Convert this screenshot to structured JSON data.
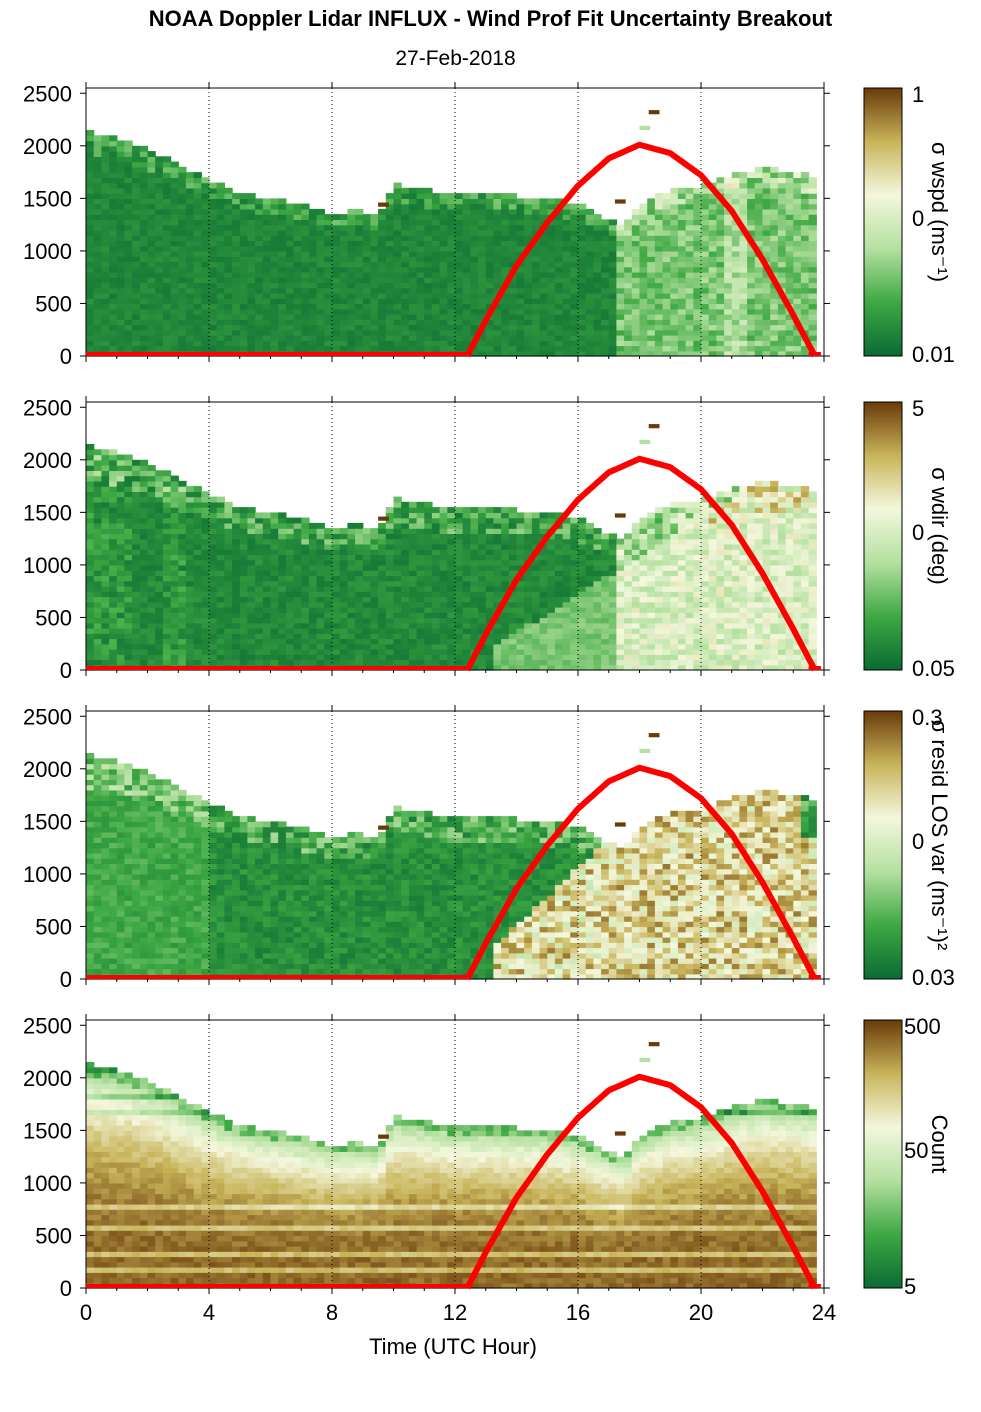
{
  "title": "NOAA Doppler Lidar INFLUX - Wind Prof Fit Uncertainty Breakout",
  "subtitle": "27-Feb-2018",
  "chart_data": {
    "type": "heatmap",
    "xlabel": "Time (UTC Hour)",
    "xlim": [
      0,
      24
    ],
    "x_ticks": [
      "0",
      "4",
      "8",
      "12",
      "16",
      "20",
      "24"
    ],
    "ylim": [
      0,
      2550
    ],
    "y_ticks": [
      "0",
      "500",
      "1000",
      "1500",
      "2000",
      "2500"
    ],
    "grid": "dotted vertical lines at x ticks",
    "cloud_top_profile": {
      "hours": [
        0.0,
        1.0,
        2.0,
        3.0,
        4.0,
        5.0,
        6.0,
        7.0,
        8.0,
        9.0,
        9.5,
        10.0,
        11.0,
        12.0,
        13.0,
        14.0,
        15.0,
        16.0,
        17.0,
        17.5,
        18.0,
        19.0,
        20.0,
        21.0,
        22.0,
        23.0,
        23.6
      ],
      "top_m": [
        2110,
        2050,
        1950,
        1800,
        1650,
        1530,
        1470,
        1420,
        1340,
        1360,
        1320,
        1620,
        1560,
        1510,
        1520,
        1500,
        1470,
        1420,
        1280,
        1210,
        1430,
        1560,
        1600,
        1700,
        1760,
        1740,
        1700
      ]
    },
    "sun_elevation_curve": {
      "color": "#ff0000",
      "x": [
        12.4,
        13.0,
        14.0,
        15.0,
        16.0,
        17.0,
        18.0,
        19.0,
        20.0,
        21.0,
        22.0,
        23.0,
        23.7
      ],
      "y": [
        0,
        340,
        860,
        1270,
        1620,
        1880,
        2010,
        1930,
        1720,
        1380,
        920,
        390,
        0
      ]
    },
    "panels": [
      {
        "colorbar_label": "σ wspd (ms⁻¹)",
        "colorbar_ticks": [
          "1",
          "0",
          "0.01"
        ],
        "colormap": [
          "#0a6b33",
          "#3ea843",
          "#b4e0a0",
          "#f4f7dc",
          "#c8b45a",
          "#6a3a09"
        ],
        "pattern": "low uncertainty (green) below cloud top; speckled lighter greens after 17 UTC"
      },
      {
        "colorbar_label": "σ wdir (deg)",
        "colorbar_ticks": [
          "5",
          "0",
          "0.05"
        ],
        "colormap": [
          "#0a6b33",
          "#3ea843",
          "#b4e0a0",
          "#f4f7dc",
          "#c8b45a",
          "#6a3a09"
        ],
        "pattern": "green with lighter band in convective boundary layer after 13 UTC"
      },
      {
        "colorbar_label": "σ resid LOS var (ms⁻¹)²",
        "colorbar_ticks": [
          "0.3",
          "0",
          "0.03"
        ],
        "colormap": [
          "#0a6b33",
          "#3ea843",
          "#b4e0a0",
          "#f4f7dc",
          "#c8b45a",
          "#6a3a09"
        ],
        "pattern": "green at night; tan/brown in daytime boundary layer 14-23 UTC"
      },
      {
        "colorbar_label": "Count",
        "colorbar_ticks": [
          "500",
          "50",
          "5"
        ],
        "colormap": [
          "#0a6b33",
          "#3ea843",
          "#b4e0a0",
          "#f4f7dc",
          "#c8b45a",
          "#6a3a09"
        ],
        "pattern": "dark brown (high count) through most of column, lighter toward cloud top"
      }
    ]
  }
}
